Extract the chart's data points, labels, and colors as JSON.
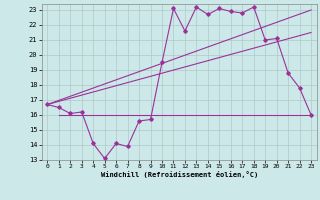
{
  "xlabel": "Windchill (Refroidissement éolien,°C)",
  "background_color": "#cde8e8",
  "grid_color": "#b0c8c8",
  "line_color": "#993399",
  "xlim": [
    -0.5,
    23.5
  ],
  "ylim": [
    13,
    23.4
  ],
  "xticks": [
    0,
    1,
    2,
    3,
    4,
    5,
    6,
    7,
    8,
    9,
    10,
    11,
    12,
    13,
    14,
    15,
    16,
    17,
    18,
    19,
    20,
    21,
    22,
    23
  ],
  "yticks": [
    13,
    14,
    15,
    16,
    17,
    18,
    19,
    20,
    21,
    22,
    23
  ],
  "zigzag_x": [
    0,
    1,
    2,
    3,
    4,
    5,
    6,
    7,
    8,
    9,
    10,
    11,
    12,
    13,
    14,
    15,
    16,
    17,
    18,
    19,
    20,
    21,
    22,
    23
  ],
  "zigzag_y": [
    16.7,
    16.5,
    16.1,
    16.2,
    14.1,
    13.1,
    14.1,
    13.9,
    15.6,
    15.7,
    19.5,
    23.1,
    21.6,
    23.2,
    22.7,
    23.1,
    22.9,
    22.8,
    23.2,
    21.0,
    21.1,
    18.8,
    17.8,
    16.0
  ],
  "diag_line1_x": [
    0,
    23
  ],
  "diag_line1_y": [
    16.7,
    23.0
  ],
  "diag_line2_x": [
    0,
    23
  ],
  "diag_line2_y": [
    16.7,
    21.5
  ],
  "horiz_line_x": [
    1,
    23
  ],
  "horiz_line_y": [
    16.0,
    16.0
  ]
}
